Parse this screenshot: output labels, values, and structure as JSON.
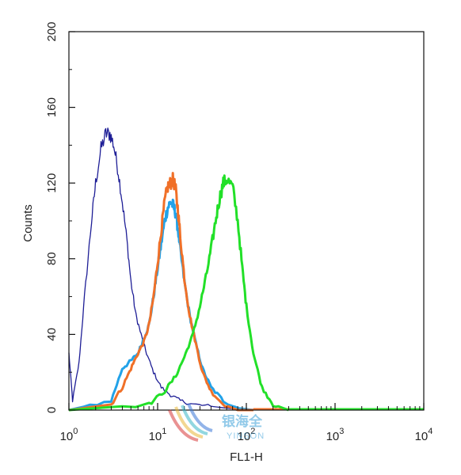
{
  "chart_data": {
    "type": "line",
    "xlabel": "FL1-H",
    "ylabel": "Counts",
    "x_scale": "log",
    "xlim": [
      1,
      10000
    ],
    "ylim": [
      0,
      200
    ],
    "x_ticks": [
      {
        "value": 1,
        "base": "10",
        "exp": "0"
      },
      {
        "value": 10,
        "base": "10",
        "exp": "1"
      },
      {
        "value": 100,
        "base": "10",
        "exp": "2"
      },
      {
        "value": 1000,
        "base": "10",
        "exp": "3"
      },
      {
        "value": 10000,
        "base": "10",
        "exp": "4"
      }
    ],
    "y_ticks": [
      "0",
      "40",
      "80",
      "120",
      "160",
      "200"
    ],
    "grid": false,
    "series": [
      {
        "color": "#1e1e96",
        "x": [
          1,
          1.1,
          1.3,
          1.5,
          1.8,
          2.0,
          2.3,
          2.6,
          2.9,
          3.2,
          3.6,
          4.0,
          4.5,
          5.0,
          5.7,
          6.5,
          7.5,
          9.0,
          11,
          14,
          18,
          25,
          40,
          60,
          100
        ],
        "y": [
          30,
          5,
          25,
          60,
          100,
          120,
          138,
          146,
          146,
          140,
          126,
          110,
          90,
          68,
          50,
          40,
          30,
          20,
          12,
          8,
          5,
          3,
          2,
          1,
          0
        ]
      },
      {
        "color": "#22a2e8",
        "x": [
          1,
          3,
          4,
          5,
          6,
          7,
          8,
          9,
          10,
          11,
          12,
          13,
          14,
          15,
          16,
          17,
          18,
          20,
          23,
          27,
          32,
          40,
          55,
          80,
          120
        ],
        "y": [
          0,
          5,
          22,
          26,
          30,
          38,
          45,
          60,
          75,
          88,
          100,
          107,
          110,
          108,
          104,
          95,
          85,
          68,
          50,
          35,
          22,
          12,
          5,
          1,
          0
        ]
      },
      {
        "color": "#f07028",
        "x": [
          1,
          3,
          4,
          5,
          6,
          7,
          8,
          9,
          10,
          11,
          12,
          13,
          14,
          15,
          16,
          17,
          18,
          20,
          23,
          27,
          32,
          40,
          55,
          80,
          120
        ],
        "y": [
          0,
          3,
          12,
          22,
          30,
          36,
          45,
          60,
          78,
          95,
          110,
          118,
          120,
          122,
          116,
          105,
          92,
          70,
          50,
          35,
          20,
          10,
          3,
          0,
          0
        ]
      },
      {
        "color": "#22e028",
        "x": [
          1,
          8,
          12,
          16,
          20,
          25,
          30,
          35,
          40,
          45,
          50,
          55,
          60,
          70,
          80,
          90,
          100,
          120,
          150,
          200,
          300
        ],
        "y": [
          0,
          3,
          10,
          18,
          28,
          40,
          55,
          70,
          85,
          100,
          112,
          120,
          122,
          118,
          100,
          75,
          55,
          30,
          12,
          3,
          0
        ]
      }
    ]
  },
  "watermark": {
    "chinese": "银海全",
    "latin": "YINSON"
  }
}
